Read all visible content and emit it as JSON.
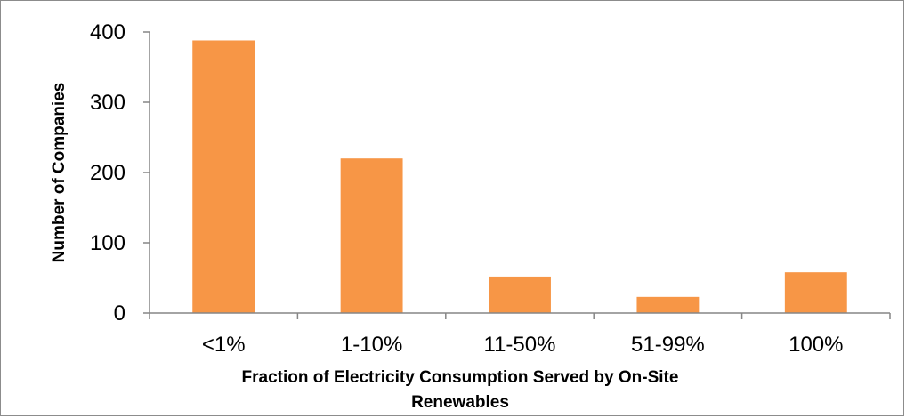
{
  "chart_data": {
    "type": "bar",
    "categories": [
      "<1%",
      "1-10%",
      "11-50%",
      "51-99%",
      "100%"
    ],
    "values": [
      388,
      220,
      52,
      23,
      58
    ],
    "xlabel_lines": [
      "Fraction of Electricity Consumption Served by On-Site",
      "Renewables"
    ],
    "ylabel": "Number of Companies",
    "ylim": [
      0,
      400
    ],
    "yticks": [
      "0",
      "100",
      "200",
      "300",
      "400"
    ],
    "grid": false,
    "legend": "none",
    "bar_color": "#f79646",
    "axis_color": "#868686"
  }
}
